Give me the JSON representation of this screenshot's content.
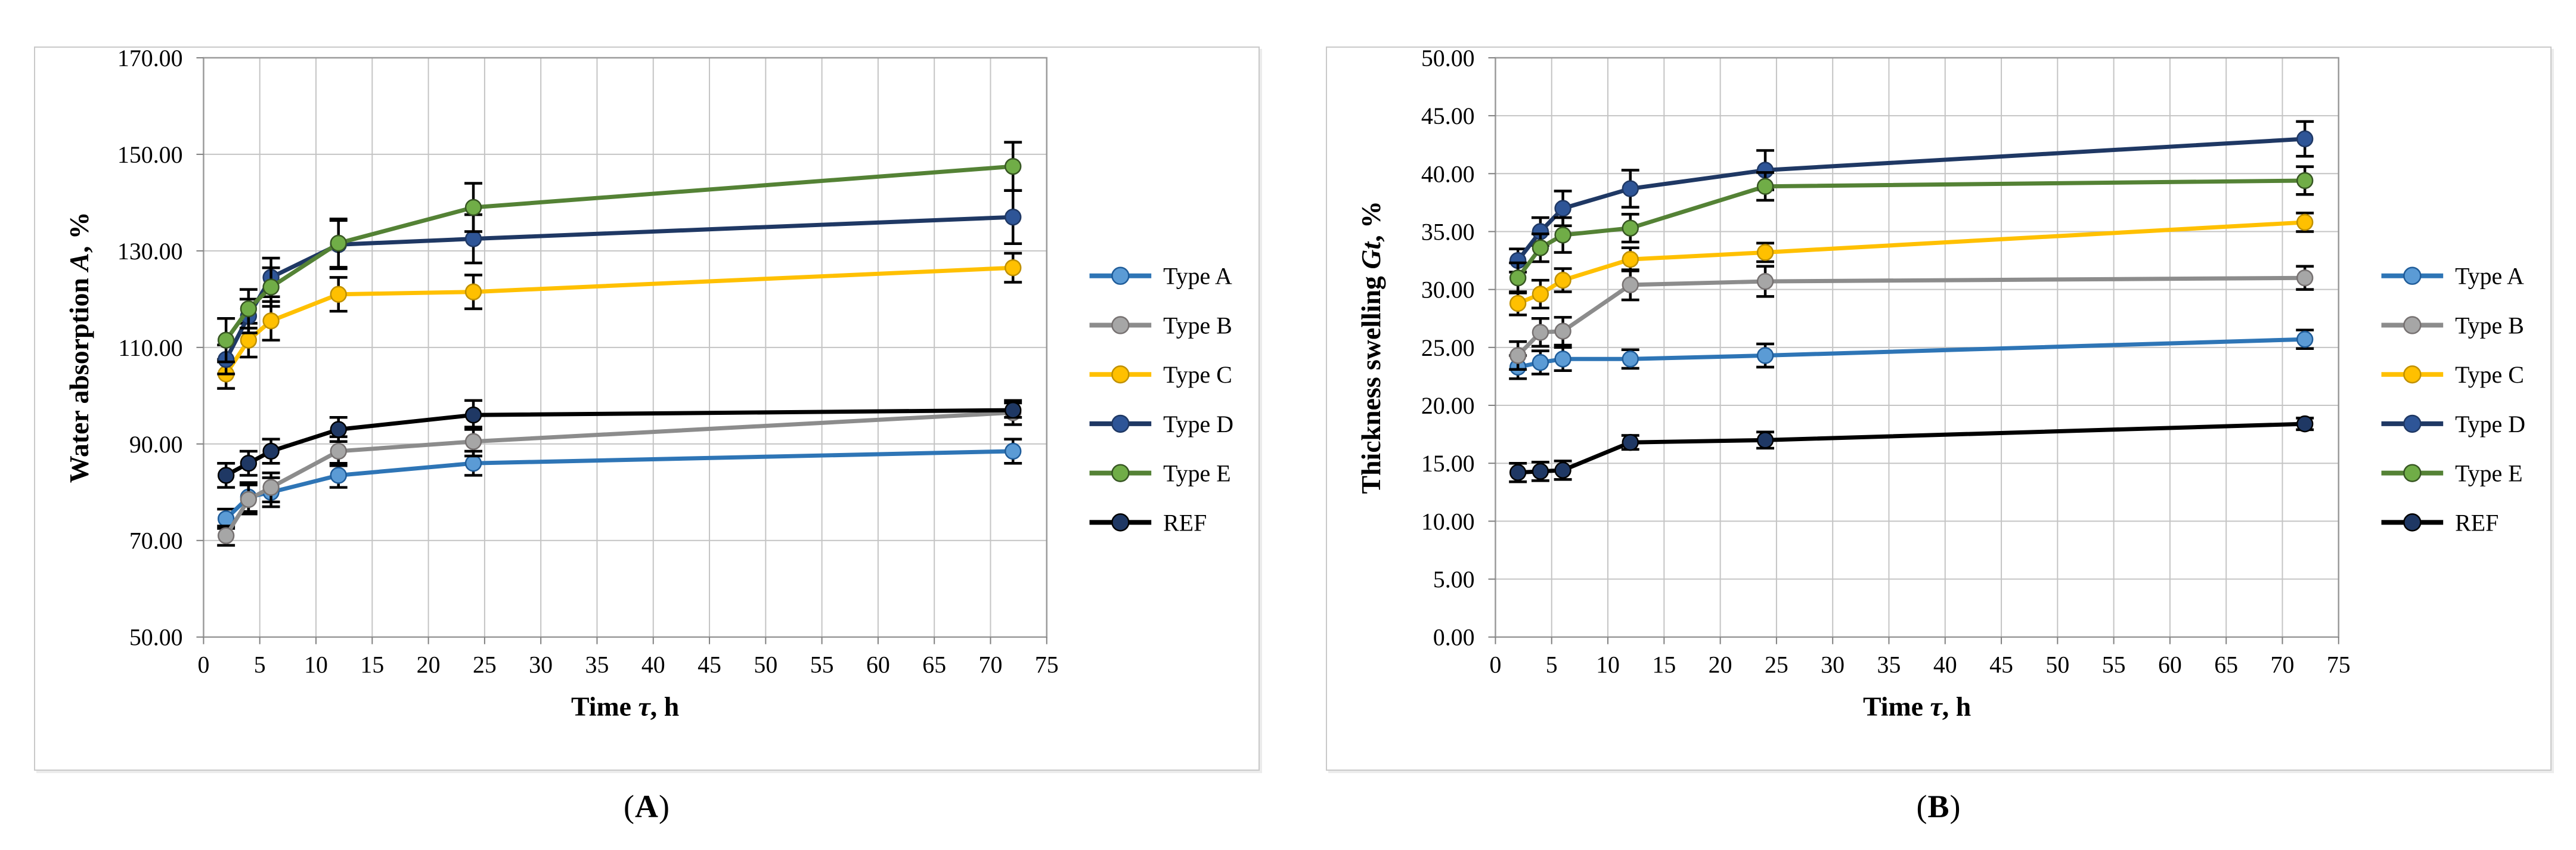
{
  "figure": {
    "background": "#FFFFFF",
    "panels": [
      {
        "id": "A",
        "caption_open": "(",
        "caption_letter": "A",
        "caption_close": ")"
      },
      {
        "id": "B",
        "caption_open": "(",
        "caption_letter": "B",
        "caption_close": ")"
      }
    ]
  },
  "colors": {
    "grid": "#C4C4C4",
    "plot_border": "#9A9A9A",
    "axis": "#7F7F7F",
    "error_bar": "#000000",
    "text": "#000000"
  },
  "chart_data": [
    {
      "type": "line",
      "title": "",
      "xlabel": "Time τ, h",
      "xlabel_parts": [
        {
          "t": "Time ",
          "i": false
        },
        {
          "t": "τ",
          "i": true
        },
        {
          "t": ", h",
          "i": false
        }
      ],
      "ylabel": "Water absorption A, %",
      "ylabel_parts": [
        {
          "t": "Water absorption ",
          "i": false
        },
        {
          "t": "A",
          "i": true
        },
        {
          "t": ", %",
          "i": false
        }
      ],
      "xlim": [
        0,
        75
      ],
      "ylim": [
        50,
        170
      ],
      "grid": true,
      "legend_position": "right",
      "x_ticks": {
        "values": [
          0,
          5,
          10,
          15,
          20,
          25,
          30,
          35,
          40,
          45,
          50,
          55,
          60,
          65,
          70,
          75
        ],
        "labels": [
          "0",
          "5",
          "10",
          "15",
          "20",
          "25",
          "30",
          "35",
          "40",
          "45",
          "50",
          "55",
          "60",
          "65",
          "70",
          "75"
        ]
      },
      "y_ticks": {
        "values": [
          50,
          70,
          90,
          110,
          130,
          150,
          170
        ],
        "labels": [
          "50.00",
          "70.00",
          "90.00",
          "110.00",
          "130.00",
          "150.00",
          "170.00"
        ]
      },
      "x": [
        2,
        4,
        6,
        12,
        24,
        72
      ],
      "series": [
        {
          "name": "Type A",
          "line_color": "#2E75B6",
          "marker_color": "#5B9BD5",
          "marker_edge": "#1F5C99",
          "values": [
            74.5,
            79.0,
            80.0,
            83.5,
            86.0,
            88.5
          ],
          "errors": [
            2.0,
            3.0,
            3.0,
            2.5,
            2.5,
            2.5
          ]
        },
        {
          "name": "Type B",
          "line_color": "#8C8C8C",
          "marker_color": "#A6A6A6",
          "marker_edge": "#767171",
          "values": [
            71.0,
            78.5,
            81.0,
            88.5,
            90.5,
            96.5
          ],
          "errors": [
            2.0,
            3.0,
            3.0,
            3.0,
            3.0,
            2.5
          ]
        },
        {
          "name": "Type C",
          "line_color": "#FFC000",
          "marker_color": "#FFC000",
          "marker_edge": "#BF9000",
          "values": [
            104.5,
            111.5,
            115.5,
            121.0,
            121.5,
            126.5
          ],
          "errors": [
            3.0,
            3.5,
            4.0,
            3.5,
            3.5,
            3.0
          ]
        },
        {
          "name": "Type D",
          "line_color": "#1F3864",
          "marker_color": "#2E5597",
          "marker_edge": "#1F3864",
          "values": [
            107.5,
            116.5,
            124.5,
            131.3,
            132.5,
            137.0
          ],
          "errors": [
            3.0,
            3.5,
            4.0,
            5.0,
            5.0,
            5.5
          ]
        },
        {
          "name": "Type E",
          "line_color": "#548235",
          "marker_color": "#70AD47",
          "marker_edge": "#375623",
          "values": [
            111.5,
            118.0,
            122.5,
            131.6,
            139.0,
            147.5
          ],
          "errors": [
            4.5,
            4.0,
            4.0,
            5.0,
            5.0,
            5.0
          ]
        },
        {
          "name": "REF",
          "line_color": "#000000",
          "marker_color": "#1F3864",
          "marker_edge": "#000000",
          "values": [
            83.5,
            86.0,
            88.5,
            93.0,
            96.0,
            97.0
          ],
          "errors": [
            2.5,
            2.5,
            2.5,
            2.5,
            3.0,
            1.5
          ]
        }
      ]
    },
    {
      "type": "line",
      "title": "",
      "xlabel": "Time τ, h",
      "xlabel_parts": [
        {
          "t": "Time ",
          "i": false
        },
        {
          "t": "τ",
          "i": true
        },
        {
          "t": ", h",
          "i": false
        }
      ],
      "ylabel": "Thickness swelling Gt, %",
      "ylabel_parts": [
        {
          "t": "Thickness swelling ",
          "i": false
        },
        {
          "t": "Gt",
          "i": true
        },
        {
          "t": ", %",
          "i": false
        }
      ],
      "xlim": [
        0,
        75
      ],
      "ylim": [
        0,
        50
      ],
      "grid": true,
      "legend_position": "right",
      "x_ticks": {
        "values": [
          0,
          5,
          10,
          15,
          20,
          25,
          30,
          35,
          40,
          45,
          50,
          55,
          60,
          65,
          70,
          75
        ],
        "labels": [
          "0",
          "5",
          "10",
          "15",
          "20",
          "25",
          "30",
          "35",
          "40",
          "45",
          "50",
          "55",
          "60",
          "65",
          "70",
          "75"
        ]
      },
      "y_ticks": {
        "values": [
          0,
          5,
          10,
          15,
          20,
          25,
          30,
          35,
          40,
          45,
          50
        ],
        "labels": [
          "0.00",
          "5.00",
          "10.00",
          "15.00",
          "20.00",
          "25.00",
          "30.00",
          "35.00",
          "40.00",
          "45.00",
          "50.00"
        ]
      },
      "x": [
        2,
        4,
        6,
        12,
        24,
        72
      ],
      "series": [
        {
          "name": "Type A",
          "line_color": "#2E75B6",
          "marker_color": "#5B9BD5",
          "marker_edge": "#1F5C99",
          "values": [
            23.3,
            23.7,
            24.0,
            24.0,
            24.3,
            25.7
          ],
          "errors": [
            1.0,
            1.0,
            1.0,
            0.8,
            1.0,
            0.8
          ]
        },
        {
          "name": "Type B",
          "line_color": "#8C8C8C",
          "marker_color": "#A6A6A6",
          "marker_edge": "#767171",
          "values": [
            24.3,
            26.3,
            26.4,
            30.4,
            30.7,
            31.0
          ],
          "errors": [
            1.2,
            1.2,
            1.2,
            1.3,
            1.3,
            1.0
          ]
        },
        {
          "name": "Type C",
          "line_color": "#FFC000",
          "marker_color": "#FFC000",
          "marker_edge": "#BF9000",
          "values": [
            28.8,
            29.6,
            30.8,
            32.6,
            33.2,
            35.8
          ],
          "errors": [
            1.0,
            1.2,
            1.0,
            1.0,
            0.8,
            0.8
          ]
        },
        {
          "name": "Type D",
          "line_color": "#1F3864",
          "marker_color": "#2E5597",
          "marker_edge": "#1F3864",
          "values": [
            32.5,
            35.0,
            37.0,
            38.7,
            40.3,
            43.0
          ],
          "errors": [
            1.0,
            1.2,
            1.5,
            1.6,
            1.7,
            1.5
          ]
        },
        {
          "name": "Type E",
          "line_color": "#548235",
          "marker_color": "#70AD47",
          "marker_edge": "#375623",
          "values": [
            31.0,
            33.6,
            34.7,
            35.3,
            38.9,
            39.4
          ],
          "errors": [
            1.3,
            1.2,
            1.5,
            1.2,
            1.2,
            1.2
          ]
        },
        {
          "name": "REF",
          "line_color": "#000000",
          "marker_color": "#1F3864",
          "marker_edge": "#000000",
          "values": [
            14.2,
            14.3,
            14.4,
            16.8,
            17.0,
            18.4
          ],
          "errors": [
            0.8,
            0.8,
            0.8,
            0.6,
            0.7,
            0.5
          ]
        }
      ]
    }
  ]
}
